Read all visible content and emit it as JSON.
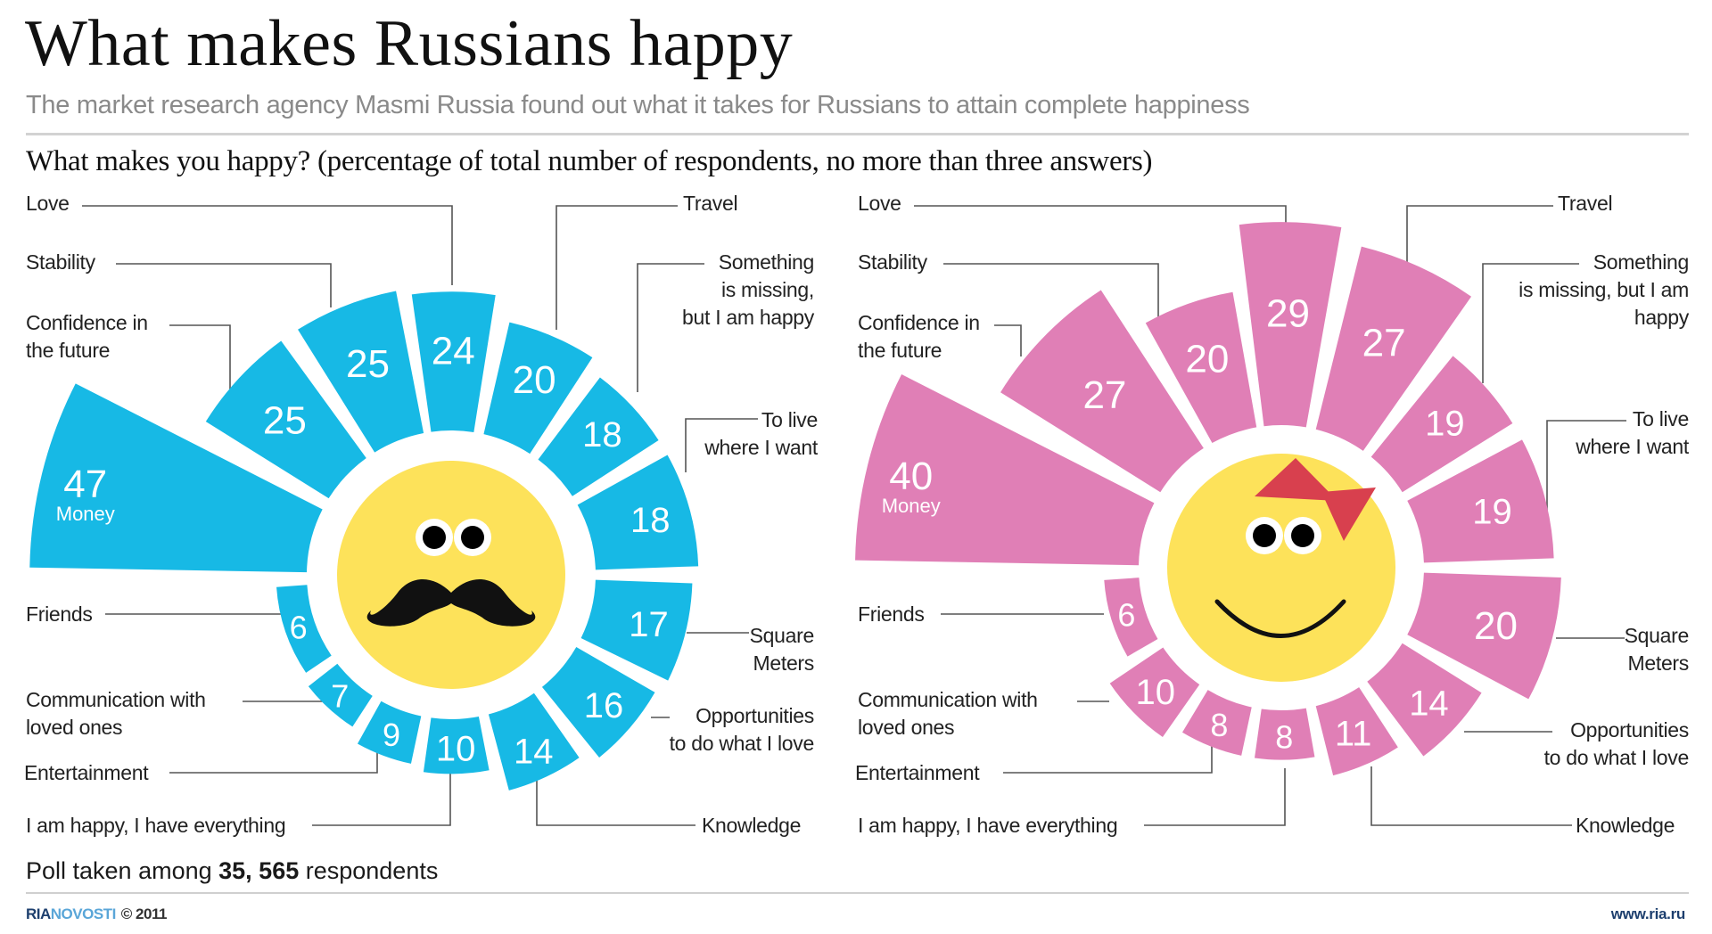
{
  "header": {
    "title": "What makes Russians happy",
    "subtitle": "The market research agency Masmi Russia found out what it takes for Russians to attain complete happiness",
    "question": "What makes you happy? (percentage of total number of respondents, no more than three answers)"
  },
  "footer": {
    "poll_prefix": "Poll taken among ",
    "poll_count": "35, 565",
    "poll_suffix": " respondents",
    "logo_ria": "RIA",
    "logo_novosti": "NOVOSTI",
    "copyright": "© 2011",
    "url": "www.ria.ru"
  },
  "colors": {
    "men": "#17b9e5",
    "women": "#e07fb6",
    "face": "#fde25a",
    "bow": "#d8404e",
    "leader": "#555555"
  },
  "chart_data": [
    {
      "type": "bar",
      "subtype": "radial-bar",
      "name": "men",
      "title": "What makes you happy? (percentage of total number of respondents, no more than three answers)",
      "unit": "%",
      "face": "mustache",
      "categories": [
        "Money",
        "Confidence in the future",
        "Stability",
        "Love",
        "Travel",
        "Something is missing, but I am happy",
        "To live where I want",
        "Square Meters",
        "Opportunities to do what I love",
        "Knowledge",
        "I am happy, I have everything",
        "Entertainment",
        "Communication with loved ones",
        "Friends"
      ],
      "values": [
        47,
        25,
        25,
        24,
        20,
        18,
        18,
        17,
        16,
        14,
        10,
        9,
        7,
        6
      ],
      "inline_label": "Money",
      "labels": {
        "love": "Love",
        "stability": "Stability",
        "confidence": [
          "Confidence in",
          "the future"
        ],
        "friends": "Friends",
        "communication": [
          "Communication with",
          "loved ones"
        ],
        "entertainment": "Entertainment",
        "happy": "I am happy, I have everything",
        "travel": "Travel",
        "something": [
          "Something",
          "is missing,",
          "but I am happy"
        ],
        "live": [
          "To live",
          "where I want"
        ],
        "square": [
          "Square",
          "Meters"
        ],
        "opportunities": [
          "Opportunities",
          "to do what I love"
        ],
        "knowledge": "Knowledge"
      }
    },
    {
      "type": "bar",
      "subtype": "radial-bar",
      "name": "women",
      "title": "What makes you happy? (percentage of total number of respondents, no more than three answers)",
      "unit": "%",
      "face": "bow-smile",
      "categories": [
        "Money",
        "Confidence in the future",
        "Stability",
        "Love",
        "Travel",
        "Something is missing, but I am happy",
        "To live where I want",
        "Square Meters",
        "Opportunities to do what I love",
        "Knowledge",
        "I am happy, I have everything",
        "Entertainment",
        "Communication with loved ones",
        "Friends"
      ],
      "values": [
        40,
        27,
        20,
        29,
        27,
        19,
        19,
        20,
        14,
        11,
        8,
        8,
        10,
        6
      ],
      "inline_label": "Money",
      "labels": {
        "love": "Love",
        "stability": "Stability",
        "confidence": [
          "Confidence in",
          "the future"
        ],
        "friends": "Friends",
        "communication": [
          "Communication with",
          "loved ones"
        ],
        "entertainment": "Entertainment",
        "happy": "I am happy, I have everything",
        "travel": "Travel",
        "something": [
          "Something",
          "is missing, but I am",
          "happy"
        ],
        "live": [
          "To live",
          "where I want"
        ],
        "square": [
          "Square",
          "Meters"
        ],
        "opportunities": [
          "Opportunities",
          "to do what I love"
        ],
        "knowledge": "Knowledge"
      }
    }
  ]
}
